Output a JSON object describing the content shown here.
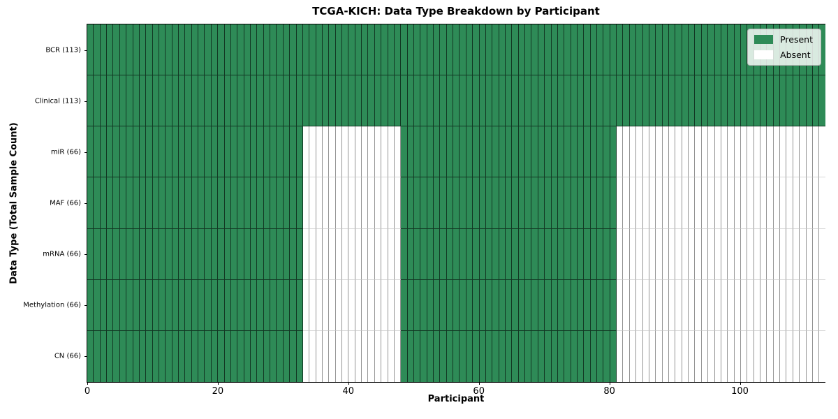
{
  "chart_data": {
    "type": "heatmap",
    "title": "TCGA-KICH: Data Type Breakdown by Participant",
    "xlabel": "Participant",
    "ylabel": "Data Type (Total Sample Count)",
    "x_range": [
      0,
      113
    ],
    "x_ticks": [
      0,
      20,
      40,
      60,
      80,
      100
    ],
    "n_participants": 113,
    "grid": true,
    "categories": [
      "BCR (113)",
      "Clinical (113)",
      "miR (66)",
      "MAF (66)",
      "mRNA (66)",
      "Methylation (66)",
      "CN (66)"
    ],
    "series": [
      {
        "name": "BCR (113)",
        "total": 113,
        "present_ranges": [
          [
            0,
            113
          ]
        ]
      },
      {
        "name": "Clinical (113)",
        "total": 113,
        "present_ranges": [
          [
            0,
            113
          ]
        ]
      },
      {
        "name": "miR (66)",
        "total": 66,
        "present_ranges": [
          [
            0,
            33
          ],
          [
            48,
            81
          ]
        ]
      },
      {
        "name": "MAF (66)",
        "total": 66,
        "present_ranges": [
          [
            0,
            33
          ],
          [
            48,
            81
          ]
        ]
      },
      {
        "name": "mRNA (66)",
        "total": 66,
        "present_ranges": [
          [
            0,
            33
          ],
          [
            48,
            81
          ]
        ]
      },
      {
        "name": "Methylation (66)",
        "total": 66,
        "present_ranges": [
          [
            0,
            33
          ],
          [
            48,
            81
          ]
        ]
      },
      {
        "name": "CN (66)",
        "total": 66,
        "present_ranges": [
          [
            0,
            33
          ],
          [
            48,
            81
          ]
        ]
      }
    ],
    "legend": {
      "position": "upper right",
      "entries": [
        {
          "label": "Present",
          "color": "#2e8b57"
        },
        {
          "label": "Absent",
          "color": "#ffffff"
        }
      ]
    },
    "colors": {
      "present": "#2e8b57",
      "absent": "#ffffff",
      "axis": "#000000"
    }
  }
}
